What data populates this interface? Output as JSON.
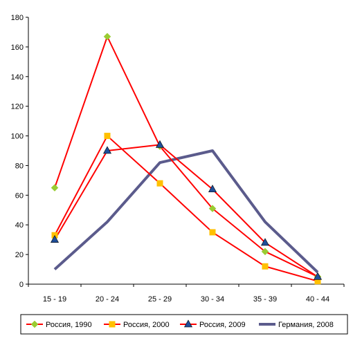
{
  "chart_data": {
    "type": "line",
    "title": "",
    "xlabel": "",
    "ylabel": "",
    "categories": [
      "15 - 19",
      "20 - 24",
      "25 - 29",
      "30 - 34",
      "35 - 39",
      "40 - 44"
    ],
    "y_ticks": [
      "0",
      "20",
      "40",
      "60",
      "80",
      "100",
      "120",
      "140",
      "160",
      "180"
    ],
    "ylim": [
      0,
      180
    ],
    "grid": false,
    "legend_position": "bottom",
    "series": [
      {
        "name": "Россия, 1990",
        "values": [
          65,
          167,
          93,
          51,
          22,
          5
        ],
        "color": "#ff0000",
        "marker": "diamond",
        "marker_color": "#99cc33"
      },
      {
        "name": "Россия, 2000",
        "values": [
          33,
          100,
          68,
          35,
          12,
          2
        ],
        "color": "#ff0000",
        "marker": "square",
        "marker_color": "#ffc000"
      },
      {
        "name": "Россия, 2009",
        "values": [
          30,
          90,
          94,
          64,
          28,
          5
        ],
        "color": "#ff0000",
        "marker": "triangle",
        "marker_color": "#1f4e99"
      },
      {
        "name": "Германия, 2008",
        "values": [
          10,
          42,
          82,
          90,
          42,
          8
        ],
        "color": "#5b5b8c",
        "marker": "none",
        "marker_color": ""
      }
    ]
  }
}
